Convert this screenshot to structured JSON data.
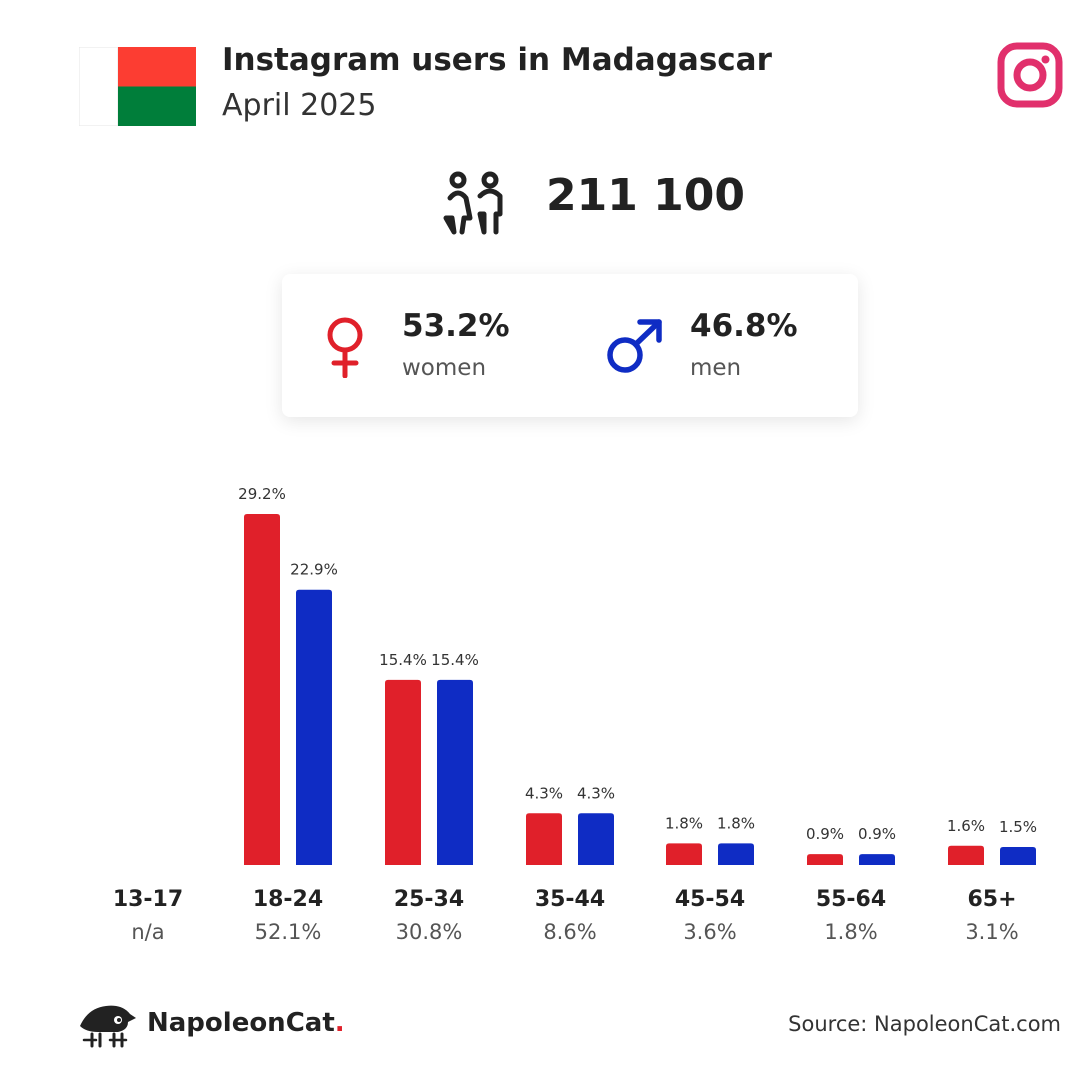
{
  "header": {
    "title": "Instagram users in Madagascar",
    "subtitle": "April 2025"
  },
  "colors": {
    "women": "#e0202a",
    "men": "#0f2cc4",
    "instagram": "#e1306c",
    "flag_red": "#fc3d32",
    "flag_green": "#007e3a"
  },
  "total": {
    "icon": "people-icon",
    "value": "211 100"
  },
  "gender": {
    "women": {
      "icon": "female-symbol-icon",
      "pct": "53.2%",
      "label": "women"
    },
    "men": {
      "icon": "male-symbol-icon",
      "pct": "46.8%",
      "label": "men"
    }
  },
  "chart_data": {
    "type": "bar",
    "categories": [
      "13-17",
      "18-24",
      "25-34",
      "35-44",
      "45-54",
      "55-64",
      "65+"
    ],
    "category_totals": [
      "n/a",
      "52.1%",
      "30.8%",
      "8.6%",
      "3.6%",
      "1.8%",
      "3.1%"
    ],
    "series": [
      {
        "values": [
          null,
          29.2,
          15.4,
          4.3,
          1.8,
          0.9,
          1.6
        ],
        "labels": [
          "",
          "29.2%",
          "15.4%",
          "4.3%",
          "1.8%",
          "0.9%",
          "1.6%"
        ]
      },
      {
        "values": [
          null,
          22.9,
          15.4,
          4.3,
          1.8,
          0.9,
          1.5
        ],
        "labels": [
          "",
          "22.9%",
          "15.4%",
          "4.3%",
          "1.8%",
          "0.9%",
          "1.5%"
        ]
      }
    ],
    "ylim": [
      0,
      29.2
    ]
  },
  "footer": {
    "brand": "NapoleonCat",
    "brand_dot": ".",
    "source": "Source: NapoleonCat.com",
    "logo_icon": "napoleoncat-logo-icon"
  }
}
